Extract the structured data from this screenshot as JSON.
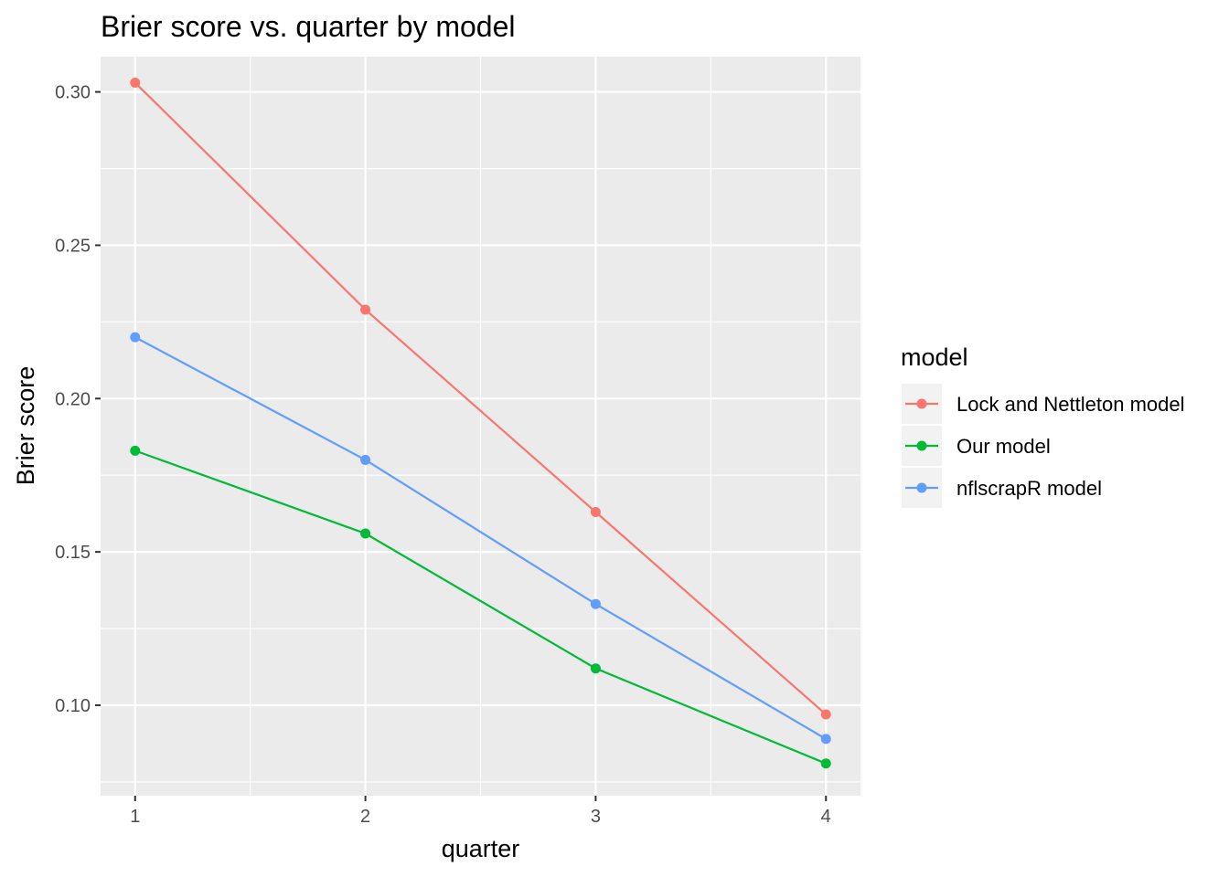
{
  "chart_data": {
    "type": "line",
    "title": "Brier score vs. quarter by model",
    "xlabel": "quarter",
    "ylabel": "Brier score",
    "x": [
      1,
      2,
      3,
      4
    ],
    "x_ticks": [
      "1",
      "2",
      "3",
      "4"
    ],
    "y_ticks": [
      "0.10",
      "0.15",
      "0.20",
      "0.25",
      "0.30"
    ],
    "xlim": [
      0.85,
      4.15
    ],
    "ylim": [
      0.0705,
      0.3115
    ],
    "grid": true,
    "legend": {
      "title": "model",
      "placement": "right"
    },
    "series": [
      {
        "name": "Lock and Nettleton model",
        "color": "#F8766D",
        "values": [
          0.303,
          0.229,
          0.163,
          0.097
        ]
      },
      {
        "name": "Our model",
        "color": "#00BA38",
        "values": [
          0.183,
          0.156,
          0.112,
          0.081
        ]
      },
      {
        "name": "nflscrapR model",
        "color": "#619CFF",
        "values": [
          0.22,
          0.18,
          0.133,
          0.089
        ]
      }
    ]
  }
}
